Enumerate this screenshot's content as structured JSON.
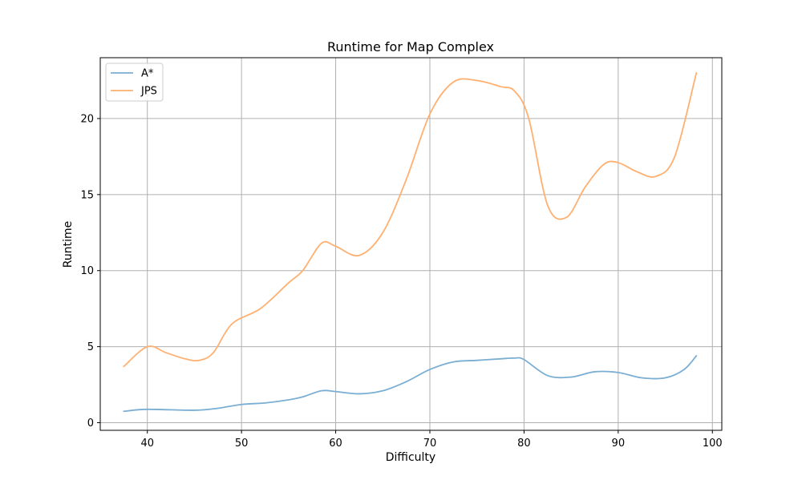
{
  "chart_data": {
    "type": "line",
    "title": "Runtime for Map Complex",
    "xlabel": "Difficulty",
    "ylabel": "Runtime",
    "xlim": [
      35,
      101
    ],
    "ylim": [
      -0.5,
      24
    ],
    "xticks": [
      40,
      50,
      60,
      70,
      80,
      90,
      100
    ],
    "yticks": [
      0,
      5,
      10,
      15,
      20
    ],
    "grid": true,
    "legend": "top-left",
    "series": [
      {
        "name": "A*",
        "color": "#7aaed3",
        "x": [
          37.5,
          40,
          45,
          47.5,
          50,
          52.5,
          55,
          56.5,
          58.5,
          60,
          62.5,
          65,
          67.5,
          70,
          72.5,
          75,
          77.5,
          79,
          80,
          82.5,
          85,
          87.5,
          90,
          92.5,
          95,
          97,
          98.3
        ],
        "y": [
          0.75,
          0.88,
          0.82,
          0.95,
          1.2,
          1.3,
          1.5,
          1.7,
          2.1,
          2.05,
          1.9,
          2.1,
          2.7,
          3.5,
          4.0,
          4.1,
          4.2,
          4.25,
          4.15,
          3.1,
          3.0,
          3.35,
          3.3,
          2.95,
          2.95,
          3.5,
          4.4
        ]
      },
      {
        "name": "JPS",
        "color": "#ffb070",
        "x": [
          37.5,
          40,
          42,
          44,
          45.5,
          47,
          49,
          52,
          55,
          56.5,
          58.5,
          60,
          62.5,
          65,
          67.5,
          70,
          72.5,
          75,
          77.5,
          79,
          80.5,
          82.5,
          84.5,
          86.5,
          88.5,
          90,
          92,
          94,
          96,
          98.3
        ],
        "y": [
          3.7,
          5.0,
          4.6,
          4.2,
          4.1,
          4.6,
          6.5,
          7.5,
          9.2,
          10.0,
          11.8,
          11.6,
          11.0,
          12.5,
          16.0,
          20.3,
          22.4,
          22.5,
          22.1,
          21.8,
          20.0,
          14.3,
          13.5,
          15.5,
          17.0,
          17.1,
          16.5,
          16.2,
          17.5,
          23.0
        ]
      }
    ]
  }
}
